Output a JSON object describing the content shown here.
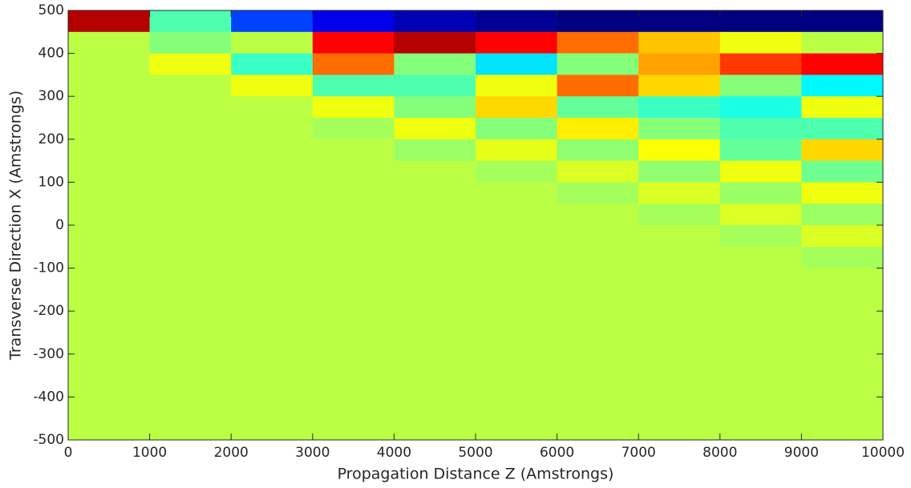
{
  "chart_data": {
    "type": "heatmap",
    "xlabel": "Propagation Distance Z (Amstrongs)",
    "ylabel": "Transverse Direction X (Amstrongs)",
    "xlim": [
      0,
      10000
    ],
    "ylim": [
      -500,
      500
    ],
    "xticks": [
      0,
      1000,
      2000,
      3000,
      4000,
      5000,
      6000,
      7000,
      8000,
      9000,
      10000
    ],
    "yticks": [
      -500,
      -400,
      -300,
      -200,
      -100,
      0,
      100,
      200,
      300,
      400,
      500
    ],
    "colormap": "jet",
    "clim": [
      0.47,
      1.42
    ],
    "x_edges": [
      0,
      1000,
      2000,
      3000,
      4000,
      5000,
      6000,
      7000,
      8000,
      9000,
      10000
    ],
    "y_edges": [
      500,
      450,
      400,
      350,
      300,
      250,
      200,
      150,
      100,
      50,
      0,
      -50,
      -100,
      -150,
      -200,
      -250,
      -300,
      -350,
      -400,
      -450,
      -500
    ],
    "z": [
      [
        1.37,
        0.9,
        0.65,
        0.57,
        0.52,
        0.49,
        0.46,
        0.44,
        0.42,
        0.41
      ],
      [
        1.0,
        0.95,
        1.0,
        1.3,
        1.37,
        1.3,
        1.2,
        1.12,
        1.05,
        1.0
      ],
      [
        1.0,
        1.05,
        0.88,
        1.2,
        0.95,
        0.8,
        0.95,
        1.15,
        1.25,
        1.3
      ],
      [
        1.0,
        1.0,
        1.05,
        0.9,
        0.9,
        1.05,
        1.2,
        1.1,
        0.95,
        0.82
      ],
      [
        1.0,
        1.0,
        1.0,
        1.05,
        0.95,
        1.1,
        0.92,
        0.88,
        0.85,
        1.05
      ],
      [
        1.0,
        1.0,
        1.0,
        0.98,
        1.05,
        0.95,
        1.08,
        0.95,
        0.9,
        0.9
      ],
      [
        1.0,
        1.0,
        1.0,
        1.0,
        0.97,
        1.04,
        0.96,
        1.06,
        0.92,
        1.1
      ],
      [
        1.0,
        1.0,
        1.0,
        1.0,
        1.0,
        0.98,
        1.03,
        0.96,
        1.05,
        0.93
      ],
      [
        1.0,
        1.0,
        1.0,
        1.0,
        1.0,
        1.0,
        0.98,
        1.03,
        0.97,
        1.05
      ],
      [
        1.0,
        1.0,
        1.0,
        1.0,
        1.0,
        1.0,
        1.0,
        0.98,
        1.03,
        0.97
      ],
      [
        1.0,
        1.0,
        1.0,
        1.0,
        1.0,
        1.0,
        1.0,
        1.0,
        0.98,
        1.03
      ],
      [
        1.0,
        1.0,
        1.0,
        1.0,
        1.0,
        1.0,
        1.0,
        1.0,
        1.0,
        0.98
      ],
      [
        1.0,
        1.0,
        1.0,
        1.0,
        1.0,
        1.0,
        1.0,
        1.0,
        1.0,
        1.0
      ],
      [
        1.0,
        1.0,
        1.0,
        1.0,
        1.0,
        1.0,
        1.0,
        1.0,
        1.0,
        1.0
      ],
      [
        1.0,
        1.0,
        1.0,
        1.0,
        1.0,
        1.0,
        1.0,
        1.0,
        1.0,
        1.0
      ],
      [
        1.0,
        1.0,
        1.0,
        1.0,
        1.0,
        1.0,
        1.0,
        1.0,
        1.0,
        1.0
      ],
      [
        1.0,
        1.0,
        1.0,
        1.0,
        1.0,
        1.0,
        1.0,
        1.0,
        1.0,
        1.0
      ],
      [
        1.0,
        1.0,
        1.0,
        1.0,
        1.0,
        1.0,
        1.0,
        1.0,
        1.0,
        1.0
      ],
      [
        1.0,
        1.0,
        1.0,
        1.0,
        1.0,
        1.0,
        1.0,
        1.0,
        1.0,
        1.0
      ],
      [
        1.0,
        1.0,
        1.0,
        1.0,
        1.0,
        1.0,
        1.0,
        1.0,
        1.0,
        1.0
      ]
    ]
  }
}
